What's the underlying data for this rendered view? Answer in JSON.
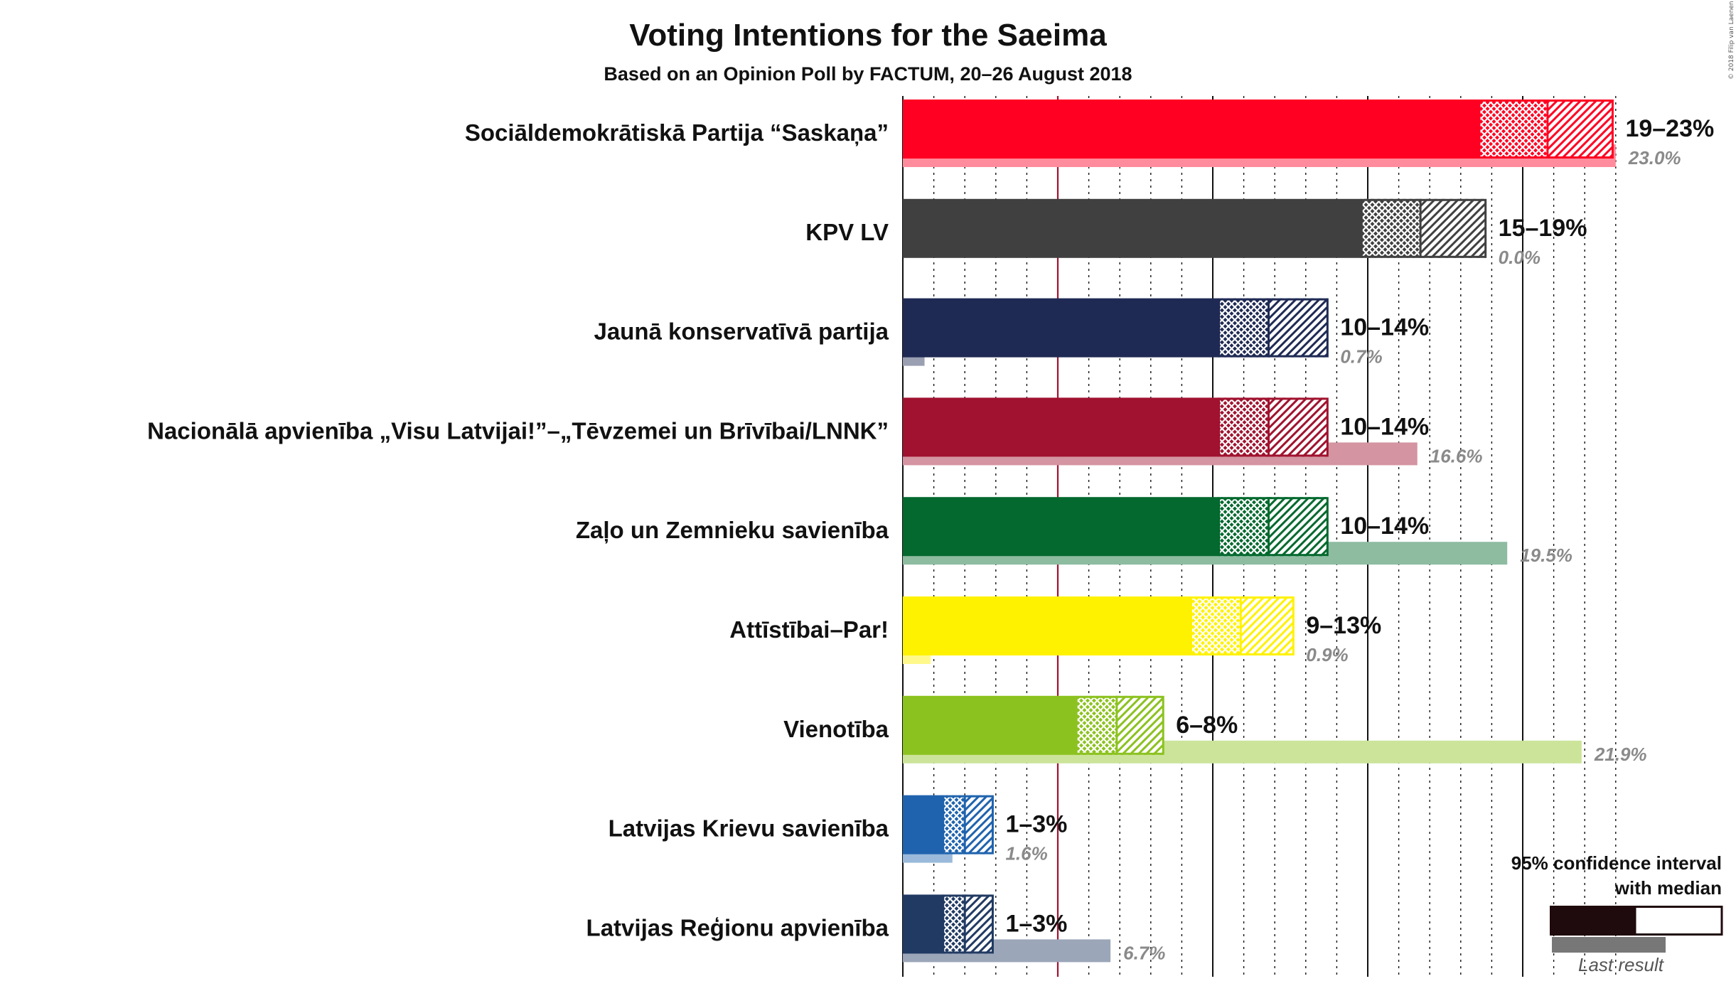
{
  "title": "Voting Intentions for the Saeima",
  "subtitle": "Based on an Opinion Poll by FACTUM, 20–26 August 2018",
  "copyright": "© 2018 Filip van Laenen",
  "legend": {
    "ci_label_line1": "95% confidence interval",
    "ci_label_line2": "with median",
    "last_result_label": "Last result"
  },
  "chart_data": {
    "type": "bar",
    "orientation": "horizontal",
    "title": "Voting Intentions for the Saeima",
    "subtitle": "Based on an Opinion Poll by FACTUM, 20–26 August 2018",
    "unit": "%",
    "xlim": [
      0,
      25
    ],
    "threshold": 5,
    "grid": "vertical dotted every 1%, solid every 5%",
    "parties": [
      {
        "name": "Sociāldemokrātiskā Partija “Saskaņa”",
        "range_label": "19–23%",
        "last_label": "23.0%",
        "ci_low": 18.6,
        "median": 20.8,
        "ci_high": 22.9,
        "last": 23.0,
        "color": "#FF0022"
      },
      {
        "name": "KPV LV",
        "range_label": "15–19%",
        "last_label": "0.0%",
        "ci_low": 14.8,
        "median": 16.7,
        "ci_high": 18.8,
        "last": 0.0,
        "color": "#404040"
      },
      {
        "name": "Jaunā konservatīvā partija",
        "range_label": "10–14%",
        "last_label": "0.7%",
        "ci_low": 10.2,
        "median": 11.8,
        "ci_high": 13.7,
        "last": 0.7,
        "color": "#1F2A54"
      },
      {
        "name": "Nacionālā apvienība „Visu Latvijai!”–„Tēvzemei un Brīvībai/LNNK”",
        "range_label": "10–14%",
        "last_label": "16.6%",
        "ci_low": 10.2,
        "median": 11.8,
        "ci_high": 13.7,
        "last": 16.6,
        "color": "#A0122F"
      },
      {
        "name": "Zaļo un Zemnieku savienība",
        "range_label": "10–14%",
        "last_label": "19.5%",
        "ci_low": 10.2,
        "median": 11.8,
        "ci_high": 13.7,
        "last": 19.5,
        "color": "#03692E"
      },
      {
        "name": "Attīstībai–Par!",
        "range_label": "9–13%",
        "last_label": "0.9%",
        "ci_low": 9.3,
        "median": 10.9,
        "ci_high": 12.6,
        "last": 0.9,
        "color": "#FFF200"
      },
      {
        "name": "Vienotība",
        "range_label": "6–8%",
        "last_label": "21.9%",
        "ci_low": 5.6,
        "median": 6.9,
        "ci_high": 8.4,
        "last": 21.9,
        "color": "#8CC21F"
      },
      {
        "name": "Latvijas Krievu savienība",
        "range_label": "1–3%",
        "last_label": "1.6%",
        "ci_low": 1.3,
        "median": 2.0,
        "ci_high": 2.9,
        "last": 1.6,
        "color": "#1F63AE"
      },
      {
        "name": "Latvijas Reģionu apvienība",
        "range_label": "1–3%",
        "last_label": "6.7%",
        "ci_low": 1.3,
        "median": 2.0,
        "ci_high": 2.9,
        "last": 6.7,
        "color": "#213A63"
      }
    ]
  }
}
